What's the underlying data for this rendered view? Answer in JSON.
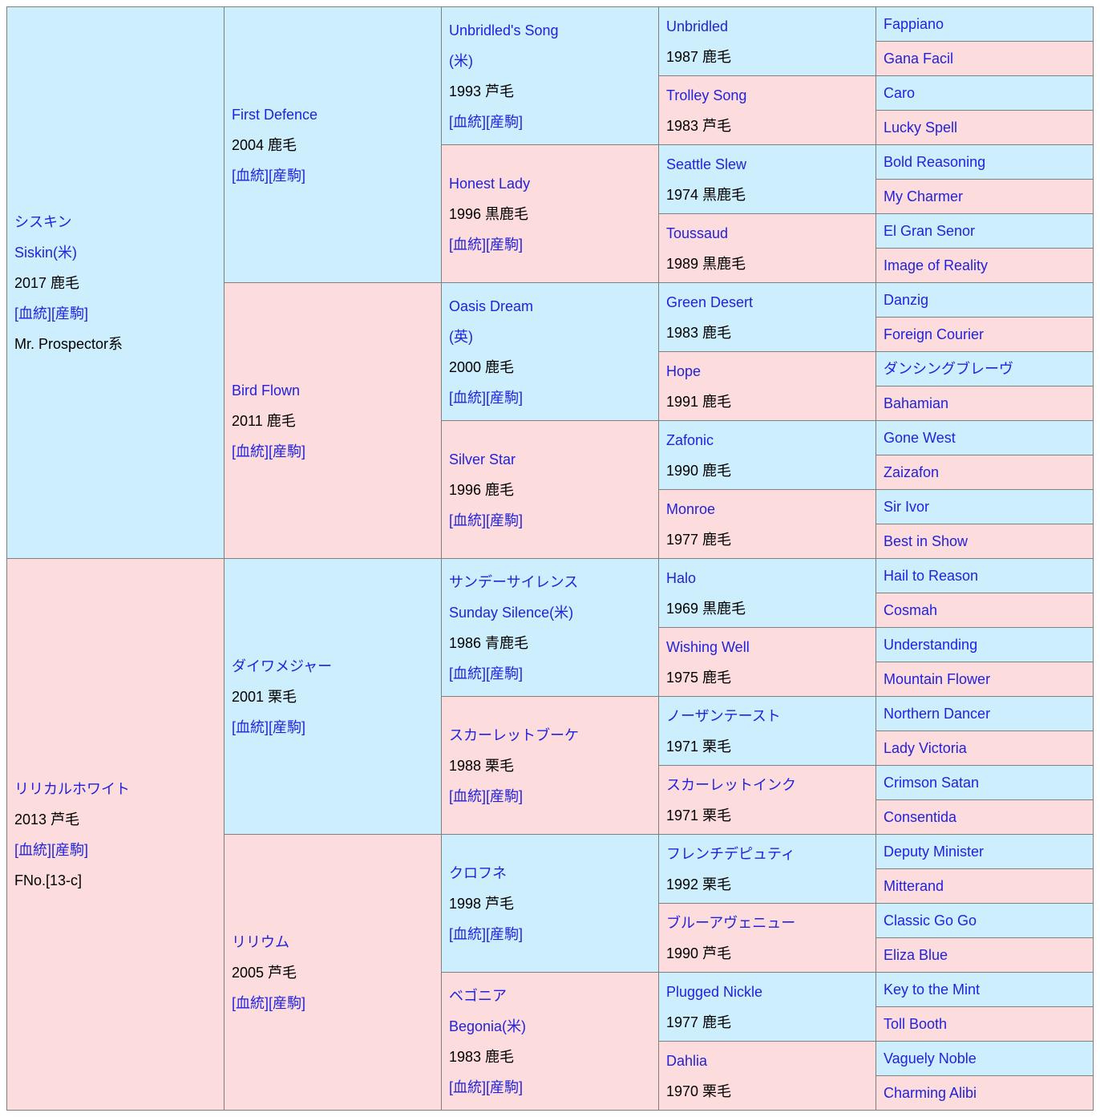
{
  "colors": {
    "male_bg": "#cdeefd",
    "female_bg": "#fcdcdc",
    "border": "#7f7f7f",
    "link": "#2222dd",
    "text": "#000000"
  },
  "labels": {
    "pedigree_link": "血統",
    "offspring_link": "産駒"
  },
  "generations": [
    [
      {
        "sex": "m",
        "names": [
          "シスキン",
          "Siskin(米)"
        ],
        "info": "2017 鹿毛",
        "links": true,
        "extra": "Mr. Prospector系"
      },
      {
        "sex": "f",
        "names": [
          "リリカルホワイト"
        ],
        "info": "2013 芦毛",
        "links": true,
        "extra": "FNo.[13-c]"
      }
    ],
    [
      {
        "sex": "m",
        "names": [
          "First Defence"
        ],
        "info": "2004 鹿毛",
        "links": true
      },
      {
        "sex": "f",
        "names": [
          "Bird Flown"
        ],
        "info": "2011 鹿毛",
        "links": true
      },
      {
        "sex": "m",
        "names": [
          "ダイワメジャー"
        ],
        "info": "2001 栗毛",
        "links": true
      },
      {
        "sex": "f",
        "names": [
          "リリウム"
        ],
        "info": "2005 芦毛",
        "links": true
      }
    ],
    [
      {
        "sex": "m",
        "names": [
          "Unbridled's Song",
          "(米)"
        ],
        "info": "1993 芦毛",
        "links": true
      },
      {
        "sex": "f",
        "names": [
          "Honest Lady"
        ],
        "info": "1996 黒鹿毛",
        "links": true
      },
      {
        "sex": "m",
        "names": [
          "Oasis Dream",
          "(英)"
        ],
        "info": "2000 鹿毛",
        "links": true
      },
      {
        "sex": "f",
        "names": [
          "Silver Star"
        ],
        "info": "1996 鹿毛",
        "links": true
      },
      {
        "sex": "m",
        "names": [
          "サンデーサイレンス",
          "Sunday Silence(米)"
        ],
        "info": "1986 青鹿毛",
        "links": true
      },
      {
        "sex": "f",
        "names": [
          "スカーレットブーケ"
        ],
        "info": "1988 栗毛",
        "links": true
      },
      {
        "sex": "m",
        "names": [
          "クロフネ"
        ],
        "info": "1998 芦毛",
        "links": true
      },
      {
        "sex": "f",
        "names": [
          "ベゴニア",
          "Begonia(米)"
        ],
        "info": "1983 鹿毛",
        "links": true
      }
    ],
    [
      {
        "sex": "m",
        "names": [
          "Unbridled"
        ],
        "info": "1987 鹿毛"
      },
      {
        "sex": "f",
        "names": [
          "Trolley Song"
        ],
        "info": "1983 芦毛"
      },
      {
        "sex": "m",
        "names": [
          "Seattle Slew"
        ],
        "info": "1974 黒鹿毛"
      },
      {
        "sex": "f",
        "names": [
          "Toussaud"
        ],
        "info": "1989 黒鹿毛"
      },
      {
        "sex": "m",
        "names": [
          "Green Desert"
        ],
        "info": "1983 鹿毛"
      },
      {
        "sex": "f",
        "names": [
          "Hope"
        ],
        "info": "1991 鹿毛"
      },
      {
        "sex": "m",
        "names": [
          "Zafonic"
        ],
        "info": "1990 鹿毛"
      },
      {
        "sex": "f",
        "names": [
          "Monroe"
        ],
        "info": "1977 鹿毛"
      },
      {
        "sex": "m",
        "names": [
          "Halo"
        ],
        "info": "1969 黒鹿毛"
      },
      {
        "sex": "f",
        "names": [
          "Wishing Well"
        ],
        "info": "1975 鹿毛"
      },
      {
        "sex": "m",
        "names": [
          "ノーザンテースト"
        ],
        "info": "1971 栗毛"
      },
      {
        "sex": "f",
        "names": [
          "スカーレットインク"
        ],
        "info": "1971 栗毛"
      },
      {
        "sex": "m",
        "names": [
          "フレンチデピュティ"
        ],
        "info": "1992 栗毛"
      },
      {
        "sex": "f",
        "names": [
          "ブルーアヴェニュー"
        ],
        "info": "1990 芦毛"
      },
      {
        "sex": "m",
        "names": [
          "Plugged Nickle"
        ],
        "info": "1977 鹿毛"
      },
      {
        "sex": "f",
        "names": [
          "Dahlia"
        ],
        "info": "1970 栗毛"
      }
    ],
    [
      {
        "sex": "m",
        "names": [
          "Fappiano"
        ]
      },
      {
        "sex": "f",
        "names": [
          "Gana Facil"
        ]
      },
      {
        "sex": "m",
        "names": [
          "Caro"
        ]
      },
      {
        "sex": "f",
        "names": [
          "Lucky Spell"
        ]
      },
      {
        "sex": "m",
        "names": [
          "Bold Reasoning"
        ]
      },
      {
        "sex": "f",
        "names": [
          "My Charmer"
        ]
      },
      {
        "sex": "m",
        "names": [
          "El Gran Senor"
        ]
      },
      {
        "sex": "f",
        "names": [
          "Image of Reality"
        ]
      },
      {
        "sex": "m",
        "names": [
          "Danzig"
        ]
      },
      {
        "sex": "f",
        "names": [
          "Foreign Courier"
        ]
      },
      {
        "sex": "m",
        "names": [
          "ダンシングブレーヴ"
        ]
      },
      {
        "sex": "f",
        "names": [
          "Bahamian"
        ]
      },
      {
        "sex": "m",
        "names": [
          "Gone West"
        ]
      },
      {
        "sex": "f",
        "names": [
          "Zaizafon"
        ]
      },
      {
        "sex": "m",
        "names": [
          "Sir Ivor"
        ]
      },
      {
        "sex": "f",
        "names": [
          "Best in Show"
        ]
      },
      {
        "sex": "m",
        "names": [
          "Hail to Reason"
        ]
      },
      {
        "sex": "f",
        "names": [
          "Cosmah"
        ]
      },
      {
        "sex": "m",
        "names": [
          "Understanding"
        ]
      },
      {
        "sex": "f",
        "names": [
          "Mountain Flower"
        ]
      },
      {
        "sex": "m",
        "names": [
          "Northern Dancer"
        ]
      },
      {
        "sex": "f",
        "names": [
          "Lady Victoria"
        ]
      },
      {
        "sex": "m",
        "names": [
          "Crimson Satan"
        ]
      },
      {
        "sex": "f",
        "names": [
          "Consentida"
        ]
      },
      {
        "sex": "m",
        "names": [
          "Deputy Minister"
        ]
      },
      {
        "sex": "f",
        "names": [
          "Mitterand"
        ]
      },
      {
        "sex": "m",
        "names": [
          "Classic Go Go"
        ]
      },
      {
        "sex": "f",
        "names": [
          "Eliza Blue"
        ]
      },
      {
        "sex": "m",
        "names": [
          "Key to the Mint"
        ]
      },
      {
        "sex": "f",
        "names": [
          "Toll Booth"
        ]
      },
      {
        "sex": "m",
        "names": [
          "Vaguely Noble"
        ]
      },
      {
        "sex": "f",
        "names": [
          "Charming Alibi"
        ]
      }
    ]
  ]
}
